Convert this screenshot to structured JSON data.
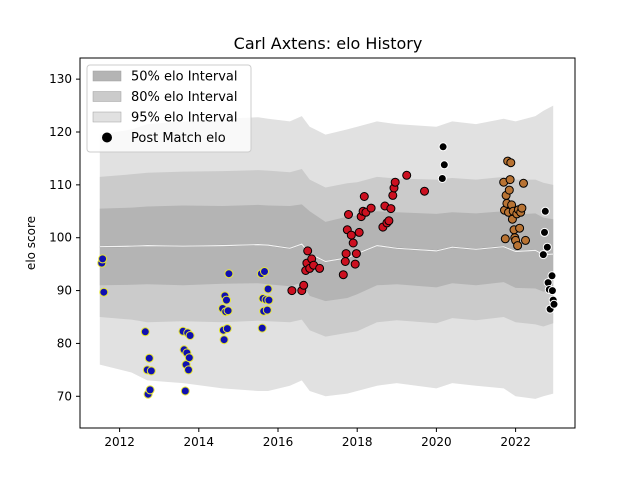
{
  "chart_data": {
    "type": "scatter",
    "title": "Carl Axtens: elo History",
    "xlabel": "",
    "ylabel": "elo score",
    "xlim": [
      2011.0,
      2023.5
    ],
    "ylim": [
      64,
      134
    ],
    "x_ticks": [
      2012,
      2014,
      2016,
      2018,
      2020,
      2022
    ],
    "y_ticks": [
      70,
      80,
      90,
      100,
      110,
      120,
      130
    ],
    "grid": false,
    "legend_position": "top-left",
    "legend": [
      {
        "label": "50% elo Interval",
        "color": "#b4b4b4"
      },
      {
        "label": "80% elo Interval",
        "color": "#cbcbcb"
      },
      {
        "label": "95% elo Interval",
        "color": "#e1e1e1"
      },
      {
        "label": "Post Match elo",
        "color": "#000000"
      }
    ],
    "bands": {
      "x": [
        2011.5,
        2012.3,
        2012.7,
        2013.6,
        2014.6,
        2015.5,
        2015.75,
        2016.3,
        2016.6,
        2016.8,
        2017.2,
        2017.75,
        2018.0,
        2018.5,
        2019.0,
        2020.0,
        2020.4,
        2021.0,
        2021.7,
        2022.0,
        2022.5,
        2022.7,
        2022.95
      ],
      "center": [
        98.3,
        98.4,
        98.5,
        98.4,
        98.5,
        98.7,
        98.6,
        98.0,
        98.8,
        97.0,
        95.5,
        96.2,
        97.0,
        98.5,
        98.0,
        97.5,
        98.2,
        97.8,
        98.3,
        97.4,
        97.6,
        96.8,
        96.9
      ],
      "p50": {
        "upper": [
          105.5,
          105.7,
          105.9,
          106.1,
          106.0,
          106.2,
          106.1,
          106.0,
          106.3,
          105.0,
          103.0,
          104.0,
          104.2,
          105.0,
          104.8,
          104.5,
          104.8,
          104.6,
          105.0,
          104.4,
          104.6,
          103.8,
          103.5
        ],
        "lower": [
          91.0,
          91.1,
          91.2,
          91.0,
          91.3,
          91.4,
          91.2,
          90.8,
          91.5,
          89.0,
          88.0,
          88.6,
          89.3,
          91.0,
          91.2,
          90.6,
          91.4,
          91.0,
          91.6,
          90.5,
          90.4,
          89.8,
          90.0
        ]
      },
      "p80": {
        "upper": [
          111.5,
          112.0,
          112.3,
          112.5,
          112.6,
          112.8,
          112.7,
          112.4,
          113.0,
          111.0,
          109.5,
          110.3,
          110.5,
          111.5,
          111.2,
          111.0,
          111.3,
          111.0,
          111.5,
          111.0,
          111.0,
          110.4,
          110.0
        ],
        "lower": [
          85.0,
          84.5,
          84.0,
          84.2,
          84.0,
          84.3,
          84.2,
          84.0,
          84.5,
          82.5,
          81.3,
          82.0,
          82.3,
          84.0,
          84.4,
          83.8,
          84.8,
          84.4,
          85.0,
          84.0,
          83.6,
          83.2,
          83.8
        ]
      },
      "p95": {
        "upper": [
          119.5,
          120.5,
          121.5,
          122.0,
          122.5,
          122.8,
          122.5,
          122.0,
          123.0,
          121.0,
          119.5,
          120.5,
          121.0,
          122.0,
          121.5,
          121.0,
          122.0,
          121.5,
          122.5,
          122.0,
          123.0,
          124.0,
          125.0
        ],
        "lower": [
          76.0,
          74.5,
          73.0,
          72.5,
          71.5,
          71.0,
          71.0,
          72.0,
          73.0,
          71.0,
          70.0,
          70.5,
          71.0,
          72.0,
          72.5,
          71.5,
          72.5,
          72.0,
          71.5,
          70.0,
          69.5,
          70.0,
          70.5
        ]
      }
    },
    "series": [
      {
        "color": "#1010b0",
        "edge": "#e6e633",
        "points": [
          [
            2011.55,
            95.2
          ],
          [
            2011.57,
            96.0
          ],
          [
            2011.6,
            89.7
          ],
          [
            2012.65,
            82.2
          ],
          [
            2012.7,
            75.0
          ],
          [
            2012.72,
            70.4
          ],
          [
            2012.75,
            77.2
          ],
          [
            2012.77,
            71.2
          ],
          [
            2012.8,
            74.8
          ],
          [
            2013.6,
            82.3
          ],
          [
            2013.63,
            78.8
          ],
          [
            2013.66,
            71.0
          ],
          [
            2013.68,
            76.0
          ],
          [
            2013.7,
            78.2
          ],
          [
            2013.72,
            82.0
          ],
          [
            2013.74,
            75.0
          ],
          [
            2013.76,
            77.3
          ],
          [
            2013.78,
            81.5
          ],
          [
            2014.6,
            86.6
          ],
          [
            2014.62,
            82.5
          ],
          [
            2014.64,
            80.7
          ],
          [
            2014.66,
            89.0
          ],
          [
            2014.68,
            86.0
          ],
          [
            2014.7,
            88.2
          ],
          [
            2014.72,
            82.8
          ],
          [
            2014.74,
            86.2
          ],
          [
            2014.76,
            93.2
          ],
          [
            2015.58,
            93.2
          ],
          [
            2015.6,
            82.9
          ],
          [
            2015.62,
            88.5
          ],
          [
            2015.64,
            86.1
          ],
          [
            2015.66,
            93.6
          ],
          [
            2015.7,
            88.3
          ],
          [
            2015.73,
            86.3
          ],
          [
            2015.75,
            90.3
          ],
          [
            2015.77,
            88.2
          ]
        ]
      },
      {
        "color": "#cc1020",
        "edge": "#000000",
        "points": [
          [
            2016.35,
            90.0
          ],
          [
            2016.6,
            90.0
          ],
          [
            2016.65,
            91.0
          ],
          [
            2016.7,
            93.8
          ],
          [
            2016.73,
            95.2
          ],
          [
            2016.75,
            97.5
          ],
          [
            2016.8,
            94.2
          ],
          [
            2016.85,
            96.0
          ],
          [
            2016.9,
            94.8
          ],
          [
            2017.05,
            94.2
          ],
          [
            2017.65,
            93.0
          ],
          [
            2017.7,
            95.5
          ],
          [
            2017.72,
            97.0
          ],
          [
            2017.75,
            101.5
          ],
          [
            2017.78,
            104.4
          ],
          [
            2017.85,
            100.5
          ],
          [
            2017.9,
            99.0
          ],
          [
            2017.95,
            95.0
          ],
          [
            2017.98,
            97.0
          ],
          [
            2018.05,
            101.0
          ],
          [
            2018.1,
            104.0
          ],
          [
            2018.15,
            105.0
          ],
          [
            2018.18,
            107.8
          ],
          [
            2018.22,
            104.8
          ],
          [
            2018.35,
            105.6
          ],
          [
            2018.65,
            102.0
          ],
          [
            2018.7,
            106.0
          ],
          [
            2018.75,
            102.8
          ],
          [
            2018.8,
            103.2
          ],
          [
            2018.85,
            105.5
          ],
          [
            2018.9,
            108.0
          ],
          [
            2018.93,
            109.4
          ],
          [
            2018.96,
            110.5
          ],
          [
            2019.25,
            111.8
          ],
          [
            2019.7,
            108.8
          ]
        ]
      },
      {
        "color": "#000000",
        "edge": "#ffffff",
        "points": [
          [
            2020.17,
            117.2
          ],
          [
            2020.2,
            113.8
          ],
          [
            2020.15,
            111.2
          ],
          [
            2022.7,
            96.8
          ],
          [
            2022.73,
            101.0
          ],
          [
            2022.75,
            105.0
          ],
          [
            2022.8,
            98.2
          ],
          [
            2022.82,
            91.5
          ],
          [
            2022.85,
            90.2
          ],
          [
            2022.87,
            86.5
          ],
          [
            2022.92,
            92.8
          ],
          [
            2022.95,
            88.2
          ],
          [
            2022.97,
            87.4
          ],
          [
            2022.93,
            90.0
          ]
        ]
      },
      {
        "color": "#b87333",
        "edge": "#000000",
        "points": [
          [
            2021.7,
            110.5
          ],
          [
            2021.72,
            105.2
          ],
          [
            2021.74,
            99.8
          ],
          [
            2021.76,
            108.0
          ],
          [
            2021.78,
            106.5
          ],
          [
            2021.8,
            114.5
          ],
          [
            2021.82,
            104.8
          ],
          [
            2021.84,
            109.0
          ],
          [
            2021.86,
            111.0
          ],
          [
            2021.88,
            114.2
          ],
          [
            2021.9,
            106.2
          ],
          [
            2021.92,
            103.5
          ],
          [
            2021.94,
            105.0
          ],
          [
            2021.96,
            101.5
          ],
          [
            2021.98,
            100.0
          ],
          [
            2022.0,
            99.5
          ],
          [
            2022.03,
            104.5
          ],
          [
            2022.05,
            98.5
          ],
          [
            2022.07,
            105.3
          ],
          [
            2022.1,
            101.8
          ],
          [
            2022.13,
            104.8
          ],
          [
            2022.16,
            105.6
          ],
          [
            2022.2,
            110.3
          ],
          [
            2022.25,
            99.5
          ]
        ]
      }
    ]
  }
}
